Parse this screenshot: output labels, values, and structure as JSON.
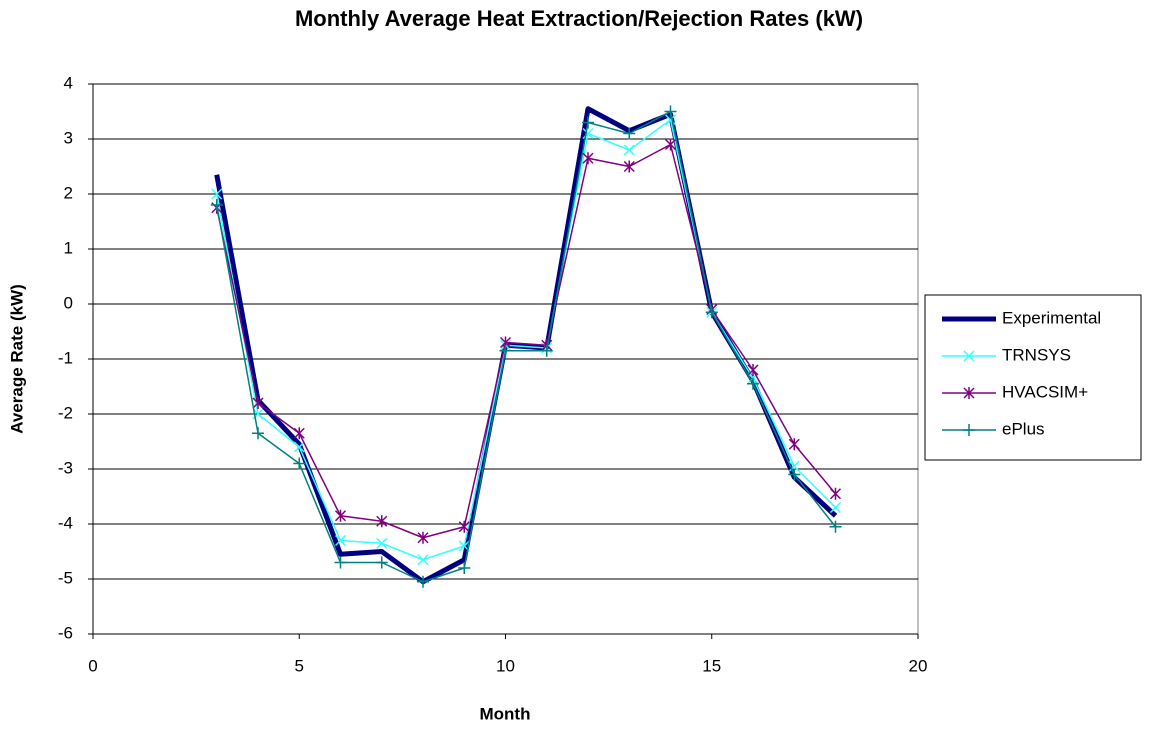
{
  "chart_data": {
    "type": "line",
    "title": "Monthly Average Heat Extraction/Rejection Rates (kW)",
    "x_label": "Month",
    "y_label": "Average Rate (kW)",
    "x": [
      3,
      4,
      5,
      6,
      7,
      8,
      9,
      10,
      11,
      12,
      13,
      14,
      15,
      16,
      17,
      18
    ],
    "series": [
      {
        "name": "Experimental",
        "color": "#000080",
        "marker": "none",
        "values": [
          2.35,
          -1.75,
          -2.55,
          -4.55,
          -4.5,
          -5.05,
          -4.65,
          -0.75,
          -0.8,
          3.55,
          3.15,
          3.45,
          -0.15,
          -1.4,
          -3.15,
          -3.85
        ]
      },
      {
        "name": "TRNSYS",
        "color": "#33ffff",
        "marker": "x",
        "values": [
          2.0,
          -2.0,
          -2.6,
          -4.3,
          -4.35,
          -4.65,
          -4.4,
          -0.75,
          -0.8,
          3.1,
          2.8,
          3.35,
          -0.15,
          -1.35,
          -2.95,
          -3.7
        ]
      },
      {
        "name": "HVACSIM+",
        "color": "#800080",
        "marker": "star",
        "values": [
          1.75,
          -1.8,
          -2.35,
          -3.85,
          -3.95,
          -4.25,
          -4.05,
          -0.7,
          -0.75,
          2.65,
          2.5,
          2.9,
          -0.1,
          -1.2,
          -2.55,
          -3.45
        ]
      },
      {
        "name": "ePlus",
        "color": "#008080",
        "marker": "plus",
        "values": [
          1.8,
          -2.35,
          -2.9,
          -4.7,
          -4.7,
          -5.05,
          -4.8,
          -0.85,
          -0.85,
          3.3,
          3.1,
          3.5,
          -0.15,
          -1.45,
          -3.1,
          -4.05
        ]
      }
    ],
    "xlim": [
      0,
      20
    ],
    "xticks": [
      0,
      5,
      10,
      15,
      20
    ],
    "ylim": [
      -6,
      4
    ],
    "yticks": [
      -6,
      -5,
      -4,
      -3,
      -2,
      -1,
      0,
      1,
      2,
      3,
      4
    ],
    "grid": true,
    "legend": "right"
  }
}
